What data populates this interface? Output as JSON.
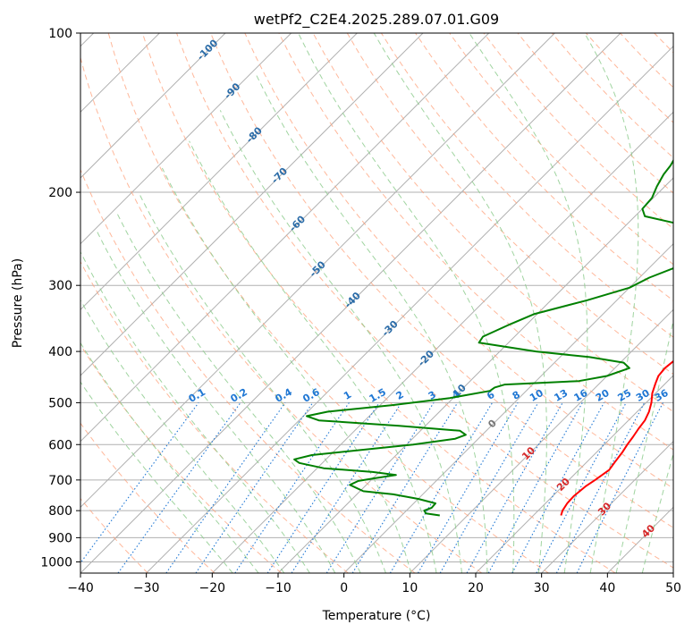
{
  "chart_data": {
    "type": "line",
    "subtype": "skew-t log-p sounding",
    "title": "wetPf2_C2E4.2025.289.07.01.G09",
    "xlabel": "Temperature (°C)",
    "ylabel": "Pressure (hPa)",
    "xlim": [
      -40,
      50
    ],
    "ylim": [
      1050,
      100
    ],
    "x_ticks": [
      -40,
      -30,
      -20,
      -10,
      0,
      10,
      20,
      30,
      40,
      50
    ],
    "y_ticks": [
      100,
      200,
      300,
      400,
      500,
      600,
      700,
      800,
      900,
      1000
    ],
    "grid": true,
    "isotherm_labels": [
      "-100",
      "-90",
      "-80",
      "-70",
      "-60",
      "-50",
      "-40",
      "-30",
      "-20",
      "-10",
      "0",
      "10",
      "20",
      "30",
      "40"
    ],
    "mixing_ratio_labels": [
      "0.1",
      "0.2",
      "0.4",
      "0.6",
      "1",
      "1.5",
      "2",
      "3",
      "4",
      "6",
      "8",
      "10",
      "13",
      "16",
      "20",
      "25",
      "30",
      "36"
    ],
    "colors": {
      "temperature": "#ff0000",
      "dewpoint": "#008000",
      "isotherm_label": "#2b6ca8",
      "isotherm_warm_label": "#d62728",
      "mixing_ratio": "#1f77d4",
      "dry_adiabat": "#ffa07a",
      "moist_adiabat": "#8fcc8f",
      "grid": "#b0b0b0"
    },
    "series": [
      {
        "name": "Temperature",
        "color": "#ff0000",
        "points": [
          [
            817,
            24.2
          ],
          [
            800,
            23.7
          ],
          [
            775,
            23.3
          ],
          [
            750,
            23.2
          ],
          [
            720,
            23.5
          ],
          [
            700,
            24.0
          ],
          [
            670,
            24.6
          ],
          [
            650,
            24.3
          ],
          [
            620,
            23.9
          ],
          [
            600,
            23.5
          ],
          [
            580,
            23.2
          ],
          [
            560,
            22.8
          ],
          [
            540,
            22.5
          ],
          [
            520,
            21.8
          ],
          [
            500,
            20.8
          ],
          [
            480,
            19.5
          ],
          [
            460,
            18.5
          ],
          [
            445,
            17.8
          ],
          [
            430,
            17.6
          ],
          [
            410,
            18.0
          ],
          [
            390,
            18.4
          ],
          [
            370,
            18.1
          ],
          [
            350,
            16.8
          ],
          [
            330,
            14.8
          ],
          [
            310,
            13.0
          ],
          [
            290,
            10.8
          ],
          [
            270,
            8.8
          ],
          [
            258,
            7.5
          ],
          [
            245,
            6.9
          ],
          [
            230,
            6.6
          ],
          [
            222,
            6.6
          ],
          [
            212,
            5.6
          ],
          [
            200,
            3.3
          ],
          [
            190,
            1.0
          ],
          [
            180,
            -1.2
          ],
          [
            170,
            -2.7
          ],
          [
            160,
            -4.0
          ],
          [
            150,
            -5.3
          ],
          [
            140,
            -6.6
          ],
          [
            130,
            -8.3
          ],
          [
            122,
            -9.8
          ],
          [
            115,
            -11.4
          ],
          [
            110,
            -12.9
          ],
          [
            105,
            -14.8
          ],
          [
            100,
            -17.3
          ]
        ]
      },
      {
        "name": "Dewpoint",
        "color": "#008000",
        "points": [
          [
            817,
            5.8
          ],
          [
            810,
            3.4
          ],
          [
            800,
            2.7
          ],
          [
            790,
            3.4
          ],
          [
            775,
            3.3
          ],
          [
            760,
            0.0
          ],
          [
            745,
            -4.5
          ],
          [
            735,
            -9.5
          ],
          [
            715,
            -12.5
          ],
          [
            703,
            -11.8
          ],
          [
            695,
            -9.8
          ],
          [
            685,
            -7.0
          ],
          [
            676,
            -11.0
          ],
          [
            665,
            -19.0
          ],
          [
            650,
            -23.5
          ],
          [
            640,
            -24.8
          ],
          [
            628,
            -22.8
          ],
          [
            620,
            -19.0
          ],
          [
            600,
            -9.0
          ],
          [
            585,
            -3.5
          ],
          [
            575,
            -2.5
          ],
          [
            565,
            -4.0
          ],
          [
            553,
            -14.0
          ],
          [
            540,
            -27.0
          ],
          [
            530,
            -29.5
          ],
          [
            520,
            -27.0
          ],
          [
            505,
            -18.0
          ],
          [
            490,
            -10.5
          ],
          [
            475,
            -5.5
          ],
          [
            468,
            -5.3
          ],
          [
            462,
            -4.2
          ],
          [
            455,
            6.5
          ],
          [
            445,
            10.0
          ],
          [
            430,
            12.2
          ],
          [
            420,
            10.5
          ],
          [
            410,
            4.5
          ],
          [
            400,
            -4.5
          ],
          [
            385,
            -14.5
          ],
          [
            375,
            -14.8
          ],
          [
            355,
            -12.5
          ],
          [
            340,
            -10.5
          ],
          [
            320,
            -4.5
          ],
          [
            303,
            0.0
          ],
          [
            290,
            1.5
          ],
          [
            276,
            4.2
          ],
          [
            265,
            7.3
          ],
          [
            256,
            7.8
          ],
          [
            245,
            5.5
          ],
          [
            235,
            2.0
          ],
          [
            228,
            -3.5
          ],
          [
            222,
            -8.5
          ],
          [
            215,
            -10.0
          ],
          [
            205,
            -10.2
          ],
          [
            195,
            -11.2
          ],
          [
            185,
            -12.0
          ],
          [
            178,
            -12.3
          ],
          [
            170,
            -13.0
          ],
          [
            160,
            -14.0
          ],
          [
            150,
            -15.4
          ],
          [
            140,
            -16.8
          ],
          [
            130,
            -19.0
          ],
          [
            123,
            -20.8
          ],
          [
            117,
            -20.9
          ],
          [
            112,
            -19.5
          ],
          [
            108,
            -18.0
          ],
          [
            104,
            -17.9
          ],
          [
            100,
            -18.9
          ]
        ]
      }
    ]
  }
}
